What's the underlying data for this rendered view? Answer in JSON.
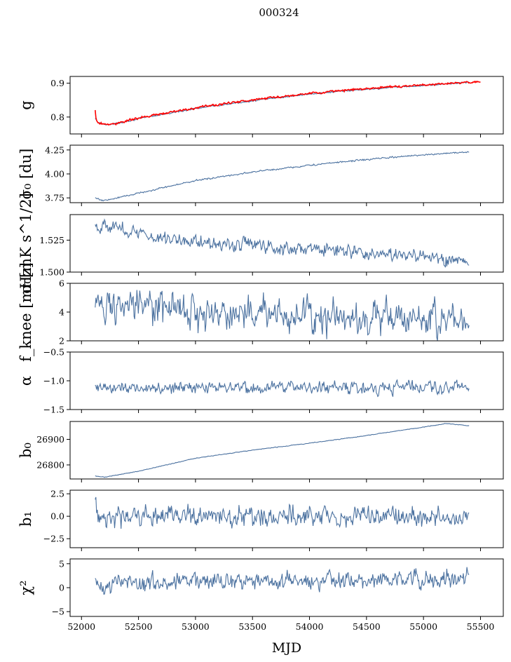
{
  "figure": {
    "title": "000324",
    "xlabel": "MJD"
  },
  "colors": {
    "series": "#4c72a0",
    "fit": "#ff0000"
  },
  "chart_data": [
    {
      "type": "line",
      "ylabel": "g",
      "ylim": [
        0.75,
        0.92
      ],
      "yticks": [
        {
          "value": 0.8,
          "label": "0.8"
        },
        {
          "value": 0.9,
          "label": "0.9"
        }
      ],
      "xlim": [
        51900,
        55700
      ],
      "series": [
        {
          "color": "#4c72a0",
          "noise": 0.001,
          "x": [
            52120,
            52150,
            52250,
            52500,
            53000,
            53500,
            54000,
            54500,
            55000,
            55400
          ],
          "y": [
            0.795,
            0.782,
            0.777,
            0.795,
            0.825,
            0.848,
            0.868,
            0.882,
            0.893,
            0.903
          ]
        },
        {
          "color": "#ff0000",
          "noise": 0.0015,
          "x": [
            52120,
            52130,
            52150,
            52250,
            52500,
            53000,
            53500,
            54000,
            54500,
            55000,
            55500
          ],
          "y": [
            0.82,
            0.79,
            0.782,
            0.777,
            0.797,
            0.827,
            0.851,
            0.87,
            0.884,
            0.895,
            0.905
          ]
        }
      ]
    },
    {
      "type": "line",
      "ylabel": "σ₀ [du]",
      "ylim": [
        3.7,
        4.3
      ],
      "yticks": [
        {
          "value": 3.75,
          "label": "3.75"
        },
        {
          "value": 4.0,
          "label": "4.00"
        },
        {
          "value": 4.25,
          "label": "4.25"
        }
      ],
      "xlim": [
        51900,
        55700
      ],
      "series": [
        {
          "color": "#4c72a0",
          "noise": 0.004,
          "x": [
            52120,
            52200,
            52500,
            53000,
            53500,
            54000,
            54500,
            55000,
            55400
          ],
          "y": [
            3.75,
            3.72,
            3.8,
            3.93,
            4.02,
            4.09,
            4.15,
            4.2,
            4.23
          ]
        }
      ]
    },
    {
      "type": "line",
      "ylabel": "σ₀[mK s^1/2]",
      "ylim": [
        1.5,
        1.545
      ],
      "yticks": [
        {
          "value": 1.5,
          "label": "1.500"
        },
        {
          "value": 1.525,
          "label": "1.525"
        }
      ],
      "xlim": [
        51900,
        55700
      ],
      "series": [
        {
          "color": "#4c72a0",
          "noise": 0.0025,
          "x": [
            52120,
            52300,
            52600,
            53000,
            53500,
            54000,
            54500,
            55000,
            55400
          ],
          "y": [
            1.537,
            1.535,
            1.528,
            1.524,
            1.521,
            1.518,
            1.515,
            1.512,
            1.508
          ]
        }
      ]
    },
    {
      "type": "line",
      "ylabel": "f_knee [mHz]",
      "ylim": [
        2,
        6
      ],
      "yticks": [
        {
          "value": 2,
          "label": "2"
        },
        {
          "value": 4,
          "label": "4"
        },
        {
          "value": 6,
          "label": "6"
        }
      ],
      "xlim": [
        51900,
        55700
      ],
      "series": [
        {
          "color": "#4c72a0",
          "noise": 0.55,
          "x": [
            52120,
            52500,
            53000,
            53500,
            54000,
            54500,
            55000,
            55400
          ],
          "y": [
            4.6,
            4.3,
            4.0,
            3.9,
            3.8,
            3.7,
            3.6,
            3.5
          ]
        }
      ]
    },
    {
      "type": "line",
      "ylabel": "α",
      "ylim": [
        -1.5,
        -0.5
      ],
      "yticks": [
        {
          "value": -1.5,
          "label": "−1.5"
        },
        {
          "value": -1.0,
          "label": "−1.0"
        },
        {
          "value": -0.5,
          "label": "−0.5"
        }
      ],
      "xlim": [
        51900,
        55700
      ],
      "series": [
        {
          "color": "#4c72a0",
          "noise": 0.05,
          "x": [
            52120,
            55400
          ],
          "y": [
            -1.12,
            -1.11
          ]
        }
      ]
    },
    {
      "type": "line",
      "ylabel": "b₀",
      "ylim": [
        26745,
        26970
      ],
      "yticks": [
        {
          "value": 26800,
          "label": "26800"
        },
        {
          "value": 26900,
          "label": "26900"
        }
      ],
      "xlim": [
        51900,
        55700
      ],
      "series": [
        {
          "color": "#4c72a0",
          "noise": 0.6,
          "x": [
            52120,
            52200,
            52500,
            53000,
            53500,
            54000,
            54500,
            55000,
            55200,
            55400
          ],
          "y": [
            26757,
            26752,
            26775,
            26826,
            26858,
            26885,
            26915,
            26948,
            26962,
            26953
          ]
        }
      ]
    },
    {
      "type": "line",
      "ylabel": "b₁",
      "ylim": [
        -3.5,
        2.9
      ],
      "yticks": [
        {
          "value": -2.5,
          "label": "−2.5"
        },
        {
          "value": 0.0,
          "label": "0.0"
        },
        {
          "value": 2.5,
          "label": "2.5"
        }
      ],
      "xlim": [
        51900,
        55700
      ],
      "series": [
        {
          "color": "#4c72a0",
          "noise": 0.5,
          "x": [
            52120,
            52150,
            52200,
            55400
          ],
          "y": [
            2.0,
            0.3,
            0.0,
            0.0
          ]
        }
      ]
    },
    {
      "type": "line",
      "ylabel": "χ²",
      "ylim": [
        -6,
        6
      ],
      "yticks": [
        {
          "value": -5,
          "label": "−5"
        },
        {
          "value": 0,
          "label": "0"
        },
        {
          "value": 5,
          "label": "5"
        }
      ],
      "xlim": [
        51900,
        55700
      ],
      "series": [
        {
          "color": "#4c72a0",
          "noise": 0.85,
          "x": [
            52120,
            52500,
            53500,
            54500,
            55400
          ],
          "y": [
            1.0,
            1.2,
            1.4,
            1.6,
            1.8
          ]
        }
      ]
    }
  ],
  "xaxis": {
    "ticks": [
      {
        "value": 52000,
        "label": "52000"
      },
      {
        "value": 52500,
        "label": "52500"
      },
      {
        "value": 53000,
        "label": "53000"
      },
      {
        "value": 53500,
        "label": "53500"
      },
      {
        "value": 54000,
        "label": "54000"
      },
      {
        "value": 54500,
        "label": "54500"
      },
      {
        "value": 55000,
        "label": "55000"
      },
      {
        "value": 55500,
        "label": "55500"
      }
    ]
  }
}
